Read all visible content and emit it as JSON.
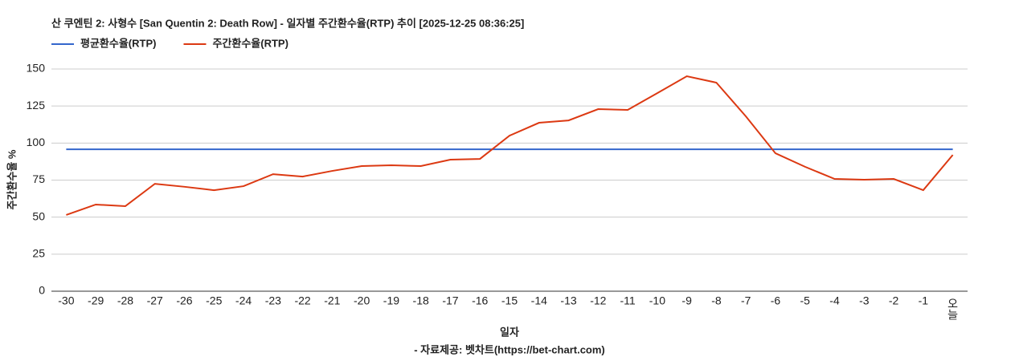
{
  "chart_data": {
    "type": "line",
    "title": "산 쿠엔틴 2: 사형수 [San Quentin 2: Death Row] - 일자별 주간환수율(RTP) 추이 [2025-12-25 08:36:25]",
    "x_label": "일자",
    "y_label": "주간환수율 %",
    "footer": "- 자료제공: 벳차트(https://bet-chart.com)",
    "categories": [
      "-30",
      "-29",
      "-28",
      "-27",
      "-26",
      "-25",
      "-24",
      "-23",
      "-22",
      "-21",
      "-20",
      "-19",
      "-18",
      "-17",
      "-16",
      "-15",
      "-14",
      "-13",
      "-12",
      "-11",
      "-10",
      "-9",
      "-8",
      "-7",
      "-6",
      "-5",
      "-4",
      "-3",
      "-2",
      "-1",
      "오늘"
    ],
    "series": [
      {
        "name": "평균환수율(RTP)",
        "color": "#3366cc",
        "values": [
          95.8,
          95.8,
          95.8,
          95.8,
          95.8,
          95.8,
          95.8,
          95.8,
          95.8,
          95.8,
          95.8,
          95.8,
          95.8,
          95.8,
          95.8,
          95.8,
          95.8,
          95.8,
          95.8,
          95.8,
          95.8,
          95.8,
          95.8,
          95.8,
          95.8,
          95.8,
          95.8,
          95.8,
          95.8,
          95.8,
          95.8
        ]
      },
      {
        "name": "주간환수율(RTP)",
        "color": "#dc3912",
        "values": [
          51.5,
          58.5,
          57.4,
          72.5,
          70.5,
          68.2,
          70.9,
          79,
          77.4,
          81.2,
          84.5,
          85,
          84.5,
          88.8,
          89.3,
          105,
          113.7,
          115.3,
          122.9,
          122.4,
          133.7,
          145.1,
          140.8,
          118,
          93.1,
          84,
          75.8,
          75.3,
          75.8,
          68.2,
          92
        ]
      }
    ],
    "ylim": [
      0,
      150
    ],
    "yticks": [
      0,
      25,
      50,
      75,
      100,
      125,
      150
    ],
    "grid": true,
    "legend": "top-left"
  }
}
